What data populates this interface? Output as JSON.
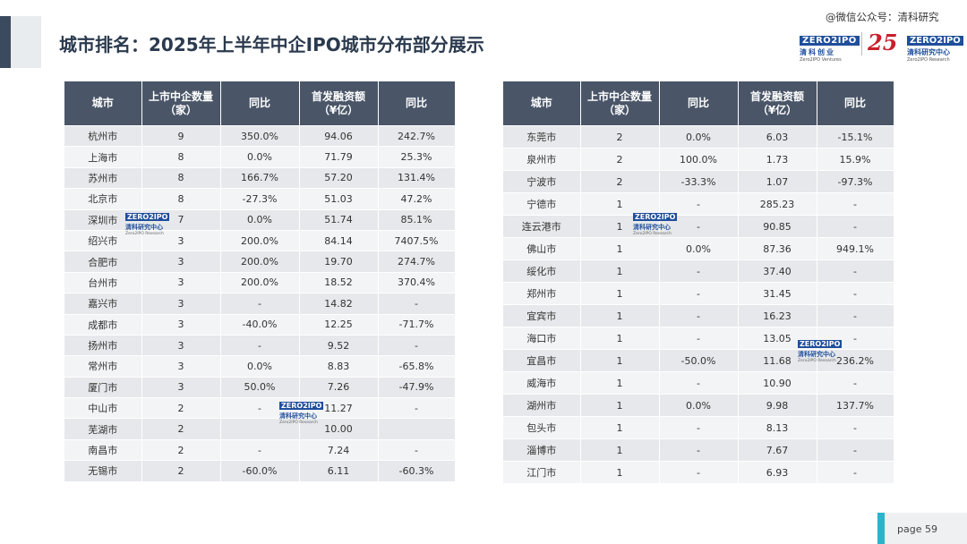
{
  "header": {
    "title": "城市排名：2025年上半年中企IPO城市分布部分展示",
    "watermark": "@微信公众号：清科研究"
  },
  "logos": {
    "left": {
      "brand": "ZERO2IPO",
      "cn": "清科创业",
      "en": "Zero2IPO Ventures"
    },
    "anniversary": "25",
    "right": {
      "brand": "ZERO2IPO",
      "cn": "清科研究中心",
      "en": "Zero2IPO Research"
    }
  },
  "table_headers": [
    "城市",
    "上市中企数量（家）",
    "同比",
    "首发融资额（¥亿）",
    "同比"
  ],
  "left_table": [
    [
      "杭州市",
      "9",
      "350.0%",
      "94.06",
      "242.7%"
    ],
    [
      "上海市",
      "8",
      "0.0%",
      "71.79",
      "25.3%"
    ],
    [
      "苏州市",
      "8",
      "166.7%",
      "57.20",
      "131.4%"
    ],
    [
      "北京市",
      "8",
      "-27.3%",
      "51.03",
      "47.2%"
    ],
    [
      "深圳市",
      "7",
      "0.0%",
      "51.74",
      "85.1%"
    ],
    [
      "绍兴市",
      "3",
      "200.0%",
      "84.14",
      "7407.5%"
    ],
    [
      "合肥市",
      "3",
      "200.0%",
      "19.70",
      "274.7%"
    ],
    [
      "台州市",
      "3",
      "200.0%",
      "18.52",
      "370.4%"
    ],
    [
      "嘉兴市",
      "3",
      "-",
      "14.82",
      "-"
    ],
    [
      "成都市",
      "3",
      "-40.0%",
      "12.25",
      "-71.7%"
    ],
    [
      "扬州市",
      "3",
      "-",
      "9.52",
      "-"
    ],
    [
      "常州市",
      "3",
      "0.0%",
      "8.83",
      "-65.8%"
    ],
    [
      "厦门市",
      "3",
      "50.0%",
      "7.26",
      "-47.9%"
    ],
    [
      "中山市",
      "2",
      "-",
      "11.27",
      "-"
    ],
    [
      "芜湖市",
      "2",
      "",
      "10.00",
      ""
    ],
    [
      "南昌市",
      "2",
      "-",
      "7.24",
      "-"
    ],
    [
      "无锡市",
      "2",
      "-60.0%",
      "6.11",
      "-60.3%"
    ]
  ],
  "right_table": [
    [
      "东莞市",
      "2",
      "0.0%",
      "6.03",
      "-15.1%"
    ],
    [
      "泉州市",
      "2",
      "100.0%",
      "1.73",
      "15.9%"
    ],
    [
      "宁波市",
      "2",
      "-33.3%",
      "1.07",
      "-97.3%"
    ],
    [
      "宁德市",
      "1",
      "-",
      "285.23",
      "-"
    ],
    [
      "连云港市",
      "1",
      "-",
      "90.85",
      "-"
    ],
    [
      "佛山市",
      "1",
      "0.0%",
      "87.36",
      "949.1%"
    ],
    [
      "绥化市",
      "1",
      "-",
      "37.40",
      "-"
    ],
    [
      "郑州市",
      "1",
      "-",
      "31.45",
      "-"
    ],
    [
      "宜宾市",
      "1",
      "-",
      "16.23",
      "-"
    ],
    [
      "海口市",
      "1",
      "-",
      "13.05",
      "-"
    ],
    [
      "宜昌市",
      "1",
      "-50.0%",
      "11.68",
      "236.2%"
    ],
    [
      "威海市",
      "1",
      "-",
      "10.90",
      "-"
    ],
    [
      "湖州市",
      "1",
      "0.0%",
      "9.98",
      "137.7%"
    ],
    [
      "包头市",
      "1",
      "-",
      "8.13",
      "-"
    ],
    [
      "淄博市",
      "1",
      "-",
      "7.67",
      "-"
    ],
    [
      "江门市",
      "1",
      "-",
      "6.93",
      "-"
    ]
  ],
  "table_watermark": {
    "brand": "ZERO2IPO",
    "cn": "清科研究中心",
    "en": "Zero2IPO Research"
  },
  "footer": {
    "page_label": "page 59"
  },
  "colors": {
    "header_bg": "#4a5668",
    "title": "#2b3a4e",
    "accent": "#29b6c8",
    "brand_blue": "#1f4e9c",
    "brand_red": "#c8202b"
  }
}
